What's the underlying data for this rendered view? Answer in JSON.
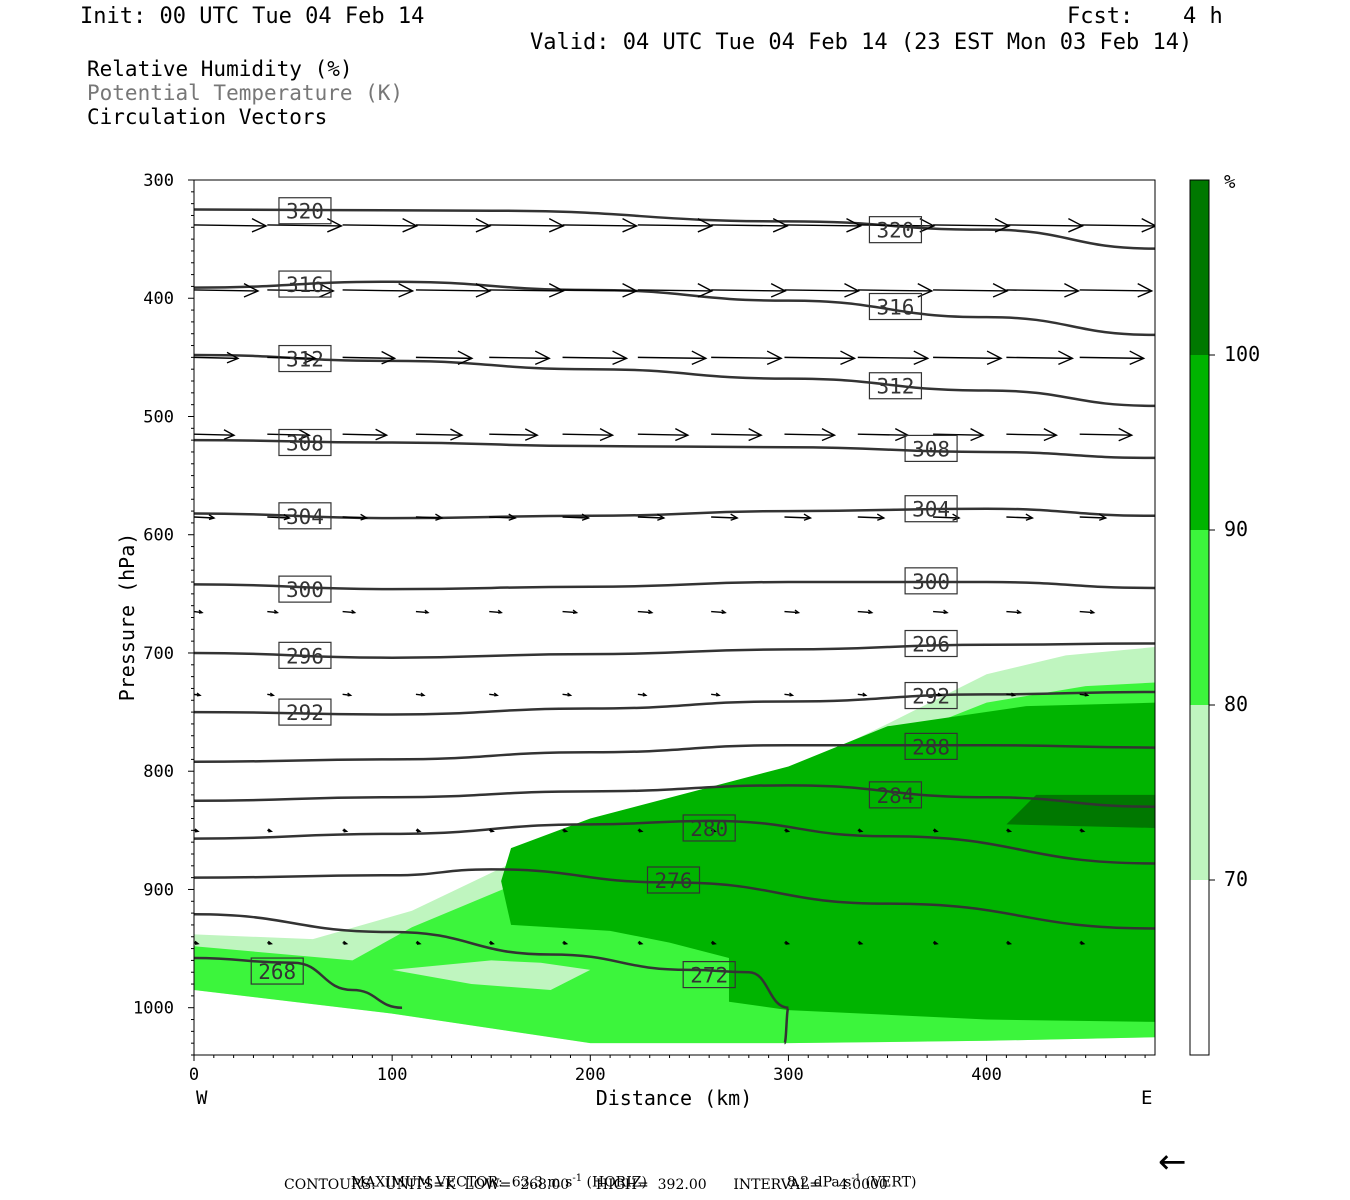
{
  "header": {
    "init": "Init: 00 UTC Tue 04 Feb 14",
    "fcst_label": "Fcst:",
    "fcst_value": "4 h",
    "valid": "Valid: 04 UTC Tue 04 Feb 14 (23 EST Mon 03 Feb 14)"
  },
  "legend_lines": [
    "Relative Humidity (%)",
    "Potential Temperature (K)",
    "Circulation Vectors"
  ],
  "footer": {
    "max_vector": "MAXIMUM VECTOR:  63.3 m s",
    "horiz": " (HORIZ)",
    "vert_val": "8.2 dPa s",
    "vert": " (VERT)",
    "contours": "CONTOURS:  UNITS=K  LOW=  268.00      HIGH=  392.00      INTERVAL=    4.0000",
    "exponent": "-1"
  },
  "colors": {
    "rh_70": "#bff5bf",
    "rh_80": "#3cf53c",
    "rh_90": "#00b400",
    "rh_100": "#007800",
    "contour": "#333333"
  },
  "chart_data": {
    "type": "cross-section",
    "xlabel": "Distance (km)",
    "ylabel": "Pressure (hPa)",
    "x_ticks": [
      0,
      100,
      200,
      300,
      400
    ],
    "y_ticks": [
      300,
      400,
      500,
      600,
      700,
      800,
      900,
      1000
    ],
    "xlim": [
      0,
      485
    ],
    "ylim": [
      1040,
      300
    ],
    "endpoints": {
      "left": "W",
      "right": "E"
    },
    "colorbar": {
      "unit": "%",
      "levels": [
        70,
        80,
        90,
        100
      ]
    },
    "theta_contours": [
      {
        "label": "320",
        "points": [
          [
            0,
            325
          ],
          [
            150,
            326
          ],
          [
            300,
            335
          ],
          [
            400,
            342
          ],
          [
            485,
            358
          ]
        ],
        "labels_at": [
          [
            56,
            326
          ],
          [
            354,
            342
          ]
        ]
      },
      {
        "label": "316",
        "points": [
          [
            0,
            391
          ],
          [
            100,
            386
          ],
          [
            200,
            393
          ],
          [
            300,
            402
          ],
          [
            400,
            416
          ],
          [
            485,
            431
          ]
        ],
        "labels_at": [
          [
            56,
            388
          ],
          [
            354,
            407
          ]
        ]
      },
      {
        "label": "312",
        "points": [
          [
            0,
            448
          ],
          [
            100,
            453
          ],
          [
            200,
            460
          ],
          [
            300,
            468
          ],
          [
            400,
            478
          ],
          [
            485,
            491
          ]
        ],
        "labels_at": [
          [
            56,
            451
          ],
          [
            354,
            474
          ]
        ]
      },
      {
        "label": "308",
        "points": [
          [
            0,
            520
          ],
          [
            100,
            522
          ],
          [
            200,
            525
          ],
          [
            300,
            526
          ],
          [
            400,
            530
          ],
          [
            485,
            535
          ]
        ],
        "labels_at": [
          [
            56,
            522
          ],
          [
            372,
            527
          ]
        ]
      },
      {
        "label": "304",
        "points": [
          [
            0,
            582
          ],
          [
            100,
            586
          ],
          [
            200,
            584
          ],
          [
            300,
            580
          ],
          [
            400,
            578
          ],
          [
            485,
            584
          ]
        ],
        "labels_at": [
          [
            56,
            584
          ],
          [
            372,
            578
          ]
        ]
      },
      {
        "label": "300",
        "points": [
          [
            0,
            642
          ],
          [
            100,
            646
          ],
          [
            200,
            644
          ],
          [
            300,
            640
          ],
          [
            400,
            640
          ],
          [
            485,
            645
          ]
        ],
        "labels_at": [
          [
            56,
            646
          ],
          [
            372,
            639
          ]
        ]
      },
      {
        "label": "296",
        "points": [
          [
            0,
            700
          ],
          [
            100,
            704
          ],
          [
            200,
            701
          ],
          [
            300,
            697
          ],
          [
            400,
            693
          ],
          [
            485,
            692
          ]
        ],
        "labels_at": [
          [
            56,
            702
          ],
          [
            372,
            692
          ]
        ]
      },
      {
        "label": "292",
        "points": [
          [
            0,
            750
          ],
          [
            100,
            752
          ],
          [
            200,
            747
          ],
          [
            300,
            741
          ],
          [
            400,
            735
          ],
          [
            485,
            733
          ]
        ],
        "labels_at": [
          [
            56,
            750
          ],
          [
            372,
            736
          ]
        ]
      },
      {
        "label": "288",
        "points": [
          [
            0,
            792
          ],
          [
            100,
            790
          ],
          [
            200,
            784
          ],
          [
            300,
            778
          ],
          [
            400,
            778
          ],
          [
            485,
            780
          ]
        ],
        "labels_at": [
          [
            372,
            779
          ]
        ]
      },
      {
        "label": "284",
        "points": [
          [
            0,
            825
          ],
          [
            100,
            822
          ],
          [
            200,
            817
          ],
          [
            300,
            812
          ],
          [
            400,
            822
          ],
          [
            485,
            830
          ]
        ],
        "labels_at": [
          [
            354,
            820
          ]
        ]
      },
      {
        "label": "280",
        "points": [
          [
            0,
            857
          ],
          [
            100,
            853
          ],
          [
            200,
            845
          ],
          [
            260,
            842
          ],
          [
            350,
            855
          ],
          [
            485,
            878
          ]
        ],
        "labels_at": [
          [
            260,
            848
          ]
        ]
      },
      {
        "label": "276",
        "points": [
          [
            0,
            890
          ],
          [
            100,
            888
          ],
          [
            150,
            883
          ],
          [
            240,
            894
          ],
          [
            350,
            912
          ],
          [
            485,
            933
          ]
        ],
        "labels_at": [
          [
            242,
            892
          ]
        ]
      },
      {
        "label": "272",
        "points": [
          [
            0,
            921
          ],
          [
            100,
            936
          ],
          [
            180,
            955
          ],
          [
            250,
            968
          ],
          [
            280,
            970
          ],
          [
            300,
            1000
          ],
          [
            298,
            1030
          ]
        ],
        "labels_at": [
          [
            260,
            972
          ]
        ]
      },
      {
        "label": "268",
        "points": [
          [
            0,
            958
          ],
          [
            50,
            962
          ],
          [
            80,
            985
          ],
          [
            105,
            1000
          ]
        ],
        "labels_at": [
          [
            42,
            969
          ]
        ]
      }
    ],
    "rh_regions": [
      {
        "level": 70,
        "points": [
          [
            0,
            938
          ],
          [
            60,
            942
          ],
          [
            110,
            918
          ],
          [
            160,
            878
          ],
          [
            220,
            842
          ],
          [
            300,
            800
          ],
          [
            350,
            760
          ],
          [
            400,
            718
          ],
          [
            440,
            702
          ],
          [
            485,
            695
          ],
          [
            485,
            1025
          ],
          [
            400,
            1028
          ],
          [
            300,
            1030
          ],
          [
            200,
            1030
          ],
          [
            100,
            1005
          ],
          [
            0,
            985
          ]
        ]
      },
      {
        "level": 80,
        "points": [
          [
            0,
            948
          ],
          [
            80,
            960
          ],
          [
            110,
            932
          ],
          [
            170,
            890
          ],
          [
            230,
            850
          ],
          [
            300,
            805
          ],
          [
            350,
            775
          ],
          [
            400,
            742
          ],
          [
            450,
            728
          ],
          [
            485,
            725
          ],
          [
            485,
            1025
          ],
          [
            400,
            1028
          ],
          [
            300,
            1030
          ],
          [
            200,
            1030
          ],
          [
            100,
            1005
          ],
          [
            0,
            985
          ]
        ]
      },
      {
        "level": 90,
        "points": [
          [
            155,
            893
          ],
          [
            160,
            865
          ],
          [
            200,
            840
          ],
          [
            250,
            818
          ],
          [
            300,
            796
          ],
          [
            350,
            762
          ],
          [
            420,
            745
          ],
          [
            485,
            742
          ],
          [
            485,
            1012
          ],
          [
            400,
            1010
          ],
          [
            300,
            1002
          ],
          [
            270,
            995
          ],
          [
            270,
            958
          ],
          [
            240,
            945
          ],
          [
            210,
            935
          ],
          [
            180,
            932
          ],
          [
            160,
            930
          ]
        ]
      },
      {
        "level": 100,
        "points": [
          [
            410,
            845
          ],
          [
            425,
            820
          ],
          [
            485,
            820
          ],
          [
            485,
            848
          ]
        ]
      }
    ],
    "rh_holes": [
      {
        "level": 80,
        "points": [
          [
            100,
            968
          ],
          [
            150,
            960
          ],
          [
            175,
            962
          ],
          [
            200,
            968
          ],
          [
            180,
            985
          ],
          [
            140,
            980
          ]
        ]
      }
    ],
    "vectors": [
      {
        "p": 338,
        "u": [
          3.6,
          3.7,
          3.7,
          3.7,
          3.7,
          3.7,
          3.7,
          3.8,
          3.8,
          3.8,
          3.8,
          3.8,
          3.8
        ]
      },
      {
        "p": 393,
        "u": [
          3.2,
          3.3,
          3.5,
          3.7,
          3.7,
          3.7,
          3.7,
          3.7,
          3.7,
          3.7,
          3.7,
          3.6,
          3.6
        ]
      },
      {
        "p": 450,
        "u": [
          2.2,
          2.4,
          2.6,
          2.8,
          3.0,
          3.2,
          3.4,
          3.5,
          3.5,
          3.5,
          3.4,
          3.3,
          3.2
        ]
      },
      {
        "p": 515,
        "u": [
          2.0,
          2.1,
          2.2,
          2.3,
          2.4,
          2.5,
          2.5,
          2.5,
          2.5,
          2.5,
          2.5,
          2.5,
          2.6
        ]
      },
      {
        "p": 585,
        "u": [
          1.0,
          1.1,
          1.2,
          1.3,
          1.3,
          1.3,
          1.3,
          1.3,
          1.3,
          1.3,
          1.3,
          1.3,
          1.3
        ]
      },
      {
        "p": 665,
        "u": [
          0.4,
          0.5,
          0.6,
          0.6,
          0.6,
          0.7,
          0.7,
          0.7,
          0.7,
          0.7,
          0.7,
          0.7,
          0.7
        ]
      },
      {
        "p": 735,
        "u": [
          0.3,
          0.3,
          0.4,
          0.4,
          0.4,
          0.4,
          0.4,
          0.4,
          0.4,
          0.4,
          0.4,
          0.4,
          0.4
        ]
      },
      {
        "p": 850,
        "u": [
          0.2,
          0.2,
          0.2,
          0.2,
          0.2,
          0.2,
          0.2,
          0.2,
          0.2,
          0.2,
          0.2,
          0.2,
          0.2
        ]
      },
      {
        "p": 945,
        "u": [
          0.2,
          0.2,
          0.2,
          0.2,
          0.2,
          0.2,
          0.2,
          0.2,
          0.2,
          0.2,
          0.2,
          0.2,
          0.2
        ]
      }
    ],
    "vector_x": [
      0,
      37,
      75,
      112,
      149,
      186,
      224,
      261,
      298,
      335,
      373,
      410,
      447
    ],
    "max_vector_arrow": "←"
  }
}
